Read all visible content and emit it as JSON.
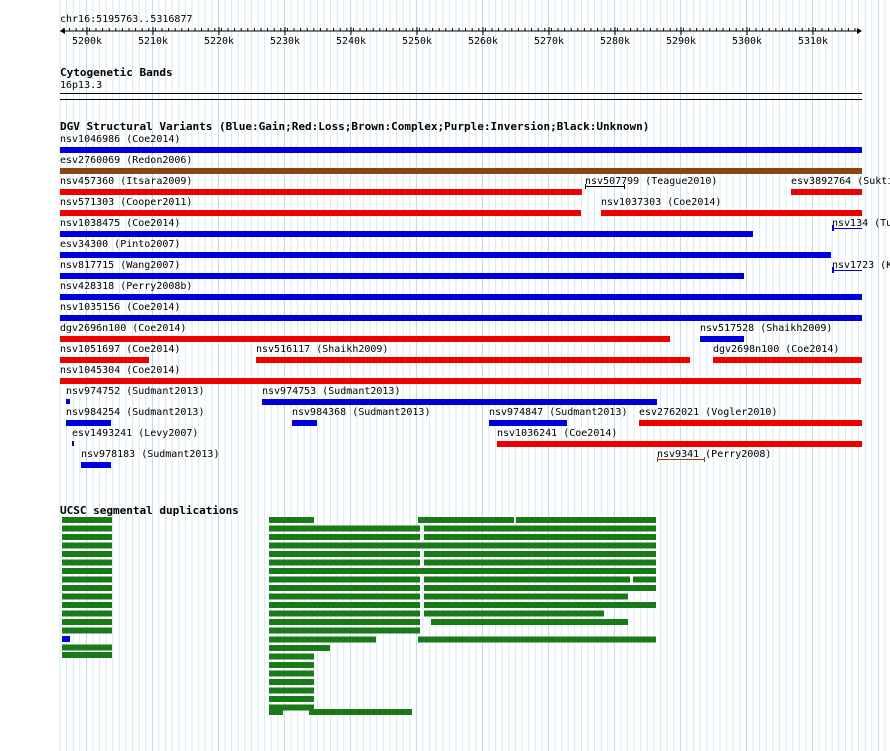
{
  "ruler": {
    "position_label": "chr16:5195763..5316877",
    "ticks": [
      "5200k",
      "5210k",
      "5220k",
      "5230k",
      "5240k",
      "5250k",
      "5260k",
      "5270k",
      "5280k",
      "5290k",
      "5300k",
      "5310k"
    ]
  },
  "cytobands": {
    "title": "Cytogenetic Bands",
    "band_label": "16p13.3"
  },
  "dgv": {
    "title": "DGV Structural Variants (Blue:Gain;Red:Loss;Brown:Complex;Purple:Inversion;Black:Unknown)",
    "colors": {
      "gain": "#0000dd",
      "loss": "#ee0000",
      "complex": "#8b4513",
      "unknown": "#000000"
    },
    "features": [
      {
        "label": "nsv1046986 (Coe2014)",
        "type": "gain"
      },
      {
        "label": "esv2760069 (Redon2006)",
        "type": "complex"
      },
      {
        "label": "nsv457360 (Itsara2009)",
        "type": "loss"
      },
      {
        "label": "nsv507799 (Teague2010)",
        "type": "unknown"
      },
      {
        "label": "esv3892764 (Sukti",
        "type": "loss"
      },
      {
        "label": "nsv571303 (Cooper2011)",
        "type": "loss"
      },
      {
        "label": "nsv1037303 (Coe2014)",
        "type": "loss"
      },
      {
        "label": "nsv1038475 (Coe2014)",
        "type": "gain"
      },
      {
        "label": "nsv134 (Tu",
        "type": "gain"
      },
      {
        "label": "esv34300 (Pinto2007)",
        "type": "gain"
      },
      {
        "label": "nsv817715 (Wang2007)",
        "type": "gain"
      },
      {
        "label": "nsv1723 (K",
        "type": "gain"
      },
      {
        "label": "nsv428318 (Perry2008b)",
        "type": "gain"
      },
      {
        "label": "nsv1035156 (Coe2014)",
        "type": "gain"
      },
      {
        "label": "dgv2696n100 (Coe2014)",
        "type": "loss"
      },
      {
        "label": "nsv517528 (Shaikh2009)",
        "type": "gain"
      },
      {
        "label": "nsv1051697 (Coe2014)",
        "type": "loss"
      },
      {
        "label": "nsv516117 (Shaikh2009)",
        "type": "loss"
      },
      {
        "label": "dgv2698n100 (Coe2014)",
        "type": "loss"
      },
      {
        "label": "nsv1045304 (Coe2014)",
        "type": "loss"
      },
      {
        "label": "nsv974752 (Sudmant2013)",
        "type": "gain"
      },
      {
        "label": "nsv974753 (Sudmant2013)",
        "type": "gain"
      },
      {
        "label": "nsv984254 (Sudmant2013)",
        "type": "gain"
      },
      {
        "label": "nsv984368 (Sudmant2013)",
        "type": "gain"
      },
      {
        "label": "nsv974847 (Sudmant2013)",
        "type": "gain"
      },
      {
        "label": "esv2762021 (Vogler2010)",
        "type": "loss"
      },
      {
        "label": "esv1493241 (Levy2007)",
        "type": "gain"
      },
      {
        "label": "nsv1036241 (Coe2014)",
        "type": "loss"
      },
      {
        "label": "nsv978183 (Sudmant2013)",
        "type": "gain"
      },
      {
        "label": "nsv9341 (Perry2008)",
        "type": "complex"
      }
    ]
  },
  "segdups": {
    "title": "UCSC segmental duplications",
    "colors": {
      "green": "#1a7a1a",
      "blue": "#0000dd"
    }
  }
}
